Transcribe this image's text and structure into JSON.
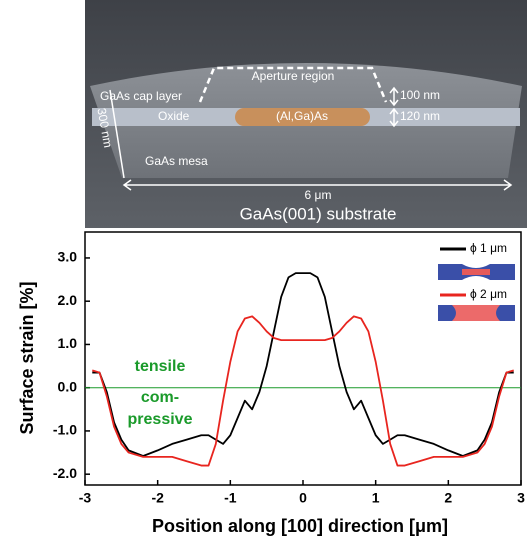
{
  "diagram": {
    "labels": [
      "Aperture region",
      "GaAs cap layer",
      "100 nm",
      "Oxide",
      "(Al,Ga)As",
      "120 nm",
      "300 nm",
      "GaAs mesa",
      "6 μm",
      "GaAs(001) substrate"
    ]
  },
  "chart_data": {
    "type": "line",
    "xlabel": "Position along [100] direction [μm]",
    "ylabel": "Surface strain [%]",
    "xlim": [
      -3,
      3
    ],
    "xticks": [
      -3,
      -2,
      -1,
      0,
      1,
      2,
      3
    ],
    "ylim": [
      -2.25,
      3.6
    ],
    "yticks": [
      {
        "value": -2,
        "label": "-2.0"
      },
      {
        "value": -1,
        "label": "-1.0"
      },
      {
        "value": 0,
        "label": "0.0"
      },
      {
        "value": 1,
        "label": "1.0"
      },
      {
        "value": 2,
        "label": "2.0"
      },
      {
        "value": 3,
        "label": "3.0"
      }
    ],
    "zero_line_color": "#1a9a2a",
    "annotations": [
      "tensile",
      "com-",
      "pressive"
    ],
    "legend": "upper right",
    "x": [
      -2.9,
      -2.8,
      -2.7,
      -2.6,
      -2.5,
      -2.4,
      -2.2,
      -2.0,
      -1.8,
      -1.6,
      -1.4,
      -1.3,
      -1.2,
      -1.1,
      -1.0,
      -0.9,
      -0.8,
      -0.7,
      -0.6,
      -0.5,
      -0.4,
      -0.3,
      -0.2,
      -0.1,
      0,
      0.1,
      0.2,
      0.3,
      0.4,
      0.5,
      0.6,
      0.7,
      0.8,
      0.9,
      1.0,
      1.1,
      1.2,
      1.3,
      1.4,
      1.6,
      1.8,
      2.0,
      2.2,
      2.4,
      2.5,
      2.6,
      2.7,
      2.8,
      2.9
    ],
    "series": [
      {
        "name": "ϕ 1 μm",
        "color": "#000000",
        "values": [
          0.35,
          0.35,
          -0.1,
          -0.8,
          -1.2,
          -1.45,
          -1.58,
          -1.45,
          -1.3,
          -1.2,
          -1.1,
          -1.1,
          -1.2,
          -1.3,
          -1.1,
          -0.7,
          -0.3,
          -0.5,
          -0.1,
          0.5,
          1.3,
          2.1,
          2.55,
          2.65,
          2.65,
          2.65,
          2.55,
          2.1,
          1.3,
          0.5,
          -0.1,
          -0.5,
          -0.3,
          -0.7,
          -1.1,
          -1.3,
          -1.2,
          -1.1,
          -1.1,
          -1.2,
          -1.3,
          -1.45,
          -1.58,
          -1.45,
          -1.2,
          -0.8,
          -0.1,
          0.35,
          0.35
        ]
      },
      {
        "name": "ϕ 2 μm",
        "color": "#e8251f",
        "values": [
          0.4,
          0.35,
          -0.2,
          -0.9,
          -1.3,
          -1.5,
          -1.6,
          -1.6,
          -1.6,
          -1.7,
          -1.8,
          -1.8,
          -1.3,
          -0.3,
          0.6,
          1.3,
          1.6,
          1.65,
          1.5,
          1.3,
          1.15,
          1.1,
          1.1,
          1.1,
          1.1,
          1.1,
          1.1,
          1.1,
          1.15,
          1.3,
          1.5,
          1.65,
          1.6,
          1.3,
          0.6,
          -0.3,
          -1.3,
          -1.8,
          -1.8,
          -1.7,
          -1.6,
          -1.6,
          -1.6,
          -1.5,
          -1.3,
          -0.9,
          -0.2,
          0.35,
          0.4
        ]
      }
    ]
  }
}
